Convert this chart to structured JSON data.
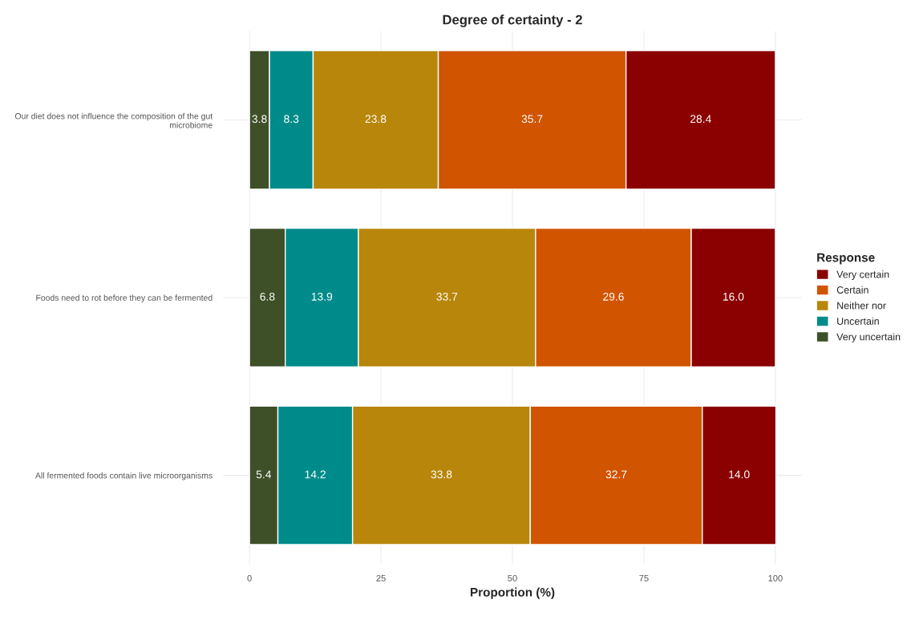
{
  "chart_data": {
    "type": "bar",
    "orientation": "horizontal",
    "stacked": true,
    "title": "Degree of certainty - 2",
    "xlabel": "Proportion (%)",
    "legend_title": "Response",
    "legend": "right",
    "categories": [
      "Our diet does not influence the composition of the gut microbiome",
      "Foods need to rot before they can be fermented",
      "All fermented foods contain live microorganisms"
    ],
    "series": [
      {
        "name": "Very uncertain",
        "color": "#3e5028",
        "values": [
          3.8,
          6.8,
          5.4
        ],
        "value_labels": [
          "3.8",
          "6.8",
          "5.4"
        ]
      },
      {
        "name": "Uncertain",
        "color": "#008b8b",
        "values": [
          8.3,
          13.9,
          14.2
        ],
        "value_labels": [
          "8.3",
          "13.9",
          "14.2"
        ]
      },
      {
        "name": "Neither nor",
        "color": "#b8860b",
        "values": [
          23.8,
          33.7,
          33.8
        ],
        "value_labels": [
          "23.8",
          "33.7",
          "33.8"
        ]
      },
      {
        "name": "Certain",
        "color": "#d15400",
        "values": [
          35.7,
          29.6,
          32.7
        ],
        "value_labels": [
          "35.7",
          "29.6",
          "32.7"
        ]
      },
      {
        "name": "Very certain",
        "color": "#8b0000",
        "values": [
          28.4,
          16.0,
          14.0
        ],
        "value_labels": [
          "28.4",
          "16.0",
          "14.0"
        ]
      }
    ],
    "xlim": [
      -5,
      105
    ],
    "xticks": [
      0,
      25,
      50,
      75,
      100
    ],
    "grid": true
  }
}
